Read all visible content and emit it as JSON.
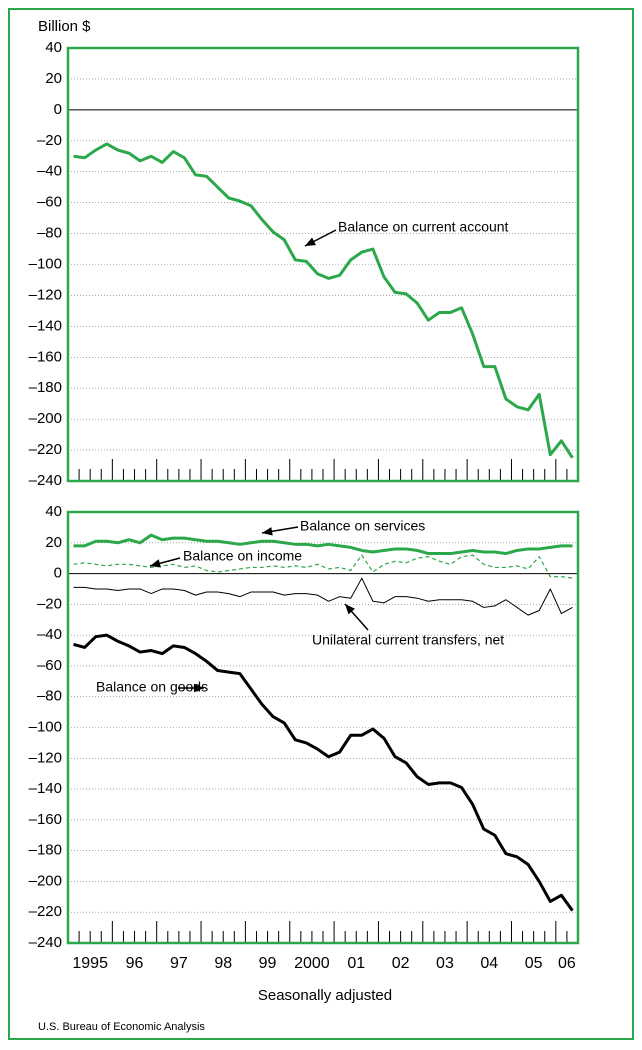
{
  "y_axis_label": "Billion $",
  "x_axis_label": "Seasonally adjusted",
  "source": "U.S. Bureau of Economic Analysis",
  "chart_data": [
    {
      "type": "line",
      "ylim": [
        -240,
        40
      ],
      "yticks": [
        40,
        20,
        0,
        {
          "value": -20,
          "label": "–20"
        },
        {
          "value": -40,
          "label": "–40"
        },
        {
          "value": -60,
          "label": "–60"
        },
        {
          "value": -80,
          "label": "–80"
        },
        {
          "value": -100,
          "label": "–100"
        },
        {
          "value": -120,
          "label": "–120"
        },
        {
          "value": -140,
          "label": "–140"
        },
        {
          "value": -160,
          "label": "–160"
        },
        {
          "value": -180,
          "label": "–180"
        },
        {
          "value": -200,
          "label": "–200"
        },
        {
          "value": -220,
          "label": "–220"
        },
        {
          "value": -240,
          "label": "–240"
        }
      ],
      "grid": true,
      "series": [
        {
          "name": "Balance on current account",
          "color": "#2aa84a",
          "values": [
            -30,
            -31,
            -26,
            -22,
            -26,
            -28,
            -33,
            -30,
            -34,
            -27,
            -31,
            -42,
            -43,
            -50,
            -57,
            -59,
            -62,
            -71,
            -79,
            -84,
            -97,
            -98,
            -106,
            -109,
            -107,
            -97,
            -92,
            -90,
            -108,
            -118,
            -119,
            -125,
            -136,
            -131,
            -131,
            -128,
            -145,
            -166,
            -166,
            -187,
            -192,
            -194,
            -184,
            -223,
            -214,
            -225
          ]
        }
      ]
    },
    {
      "type": "line",
      "ylim": [
        -240,
        40
      ],
      "yticks": [
        40,
        20,
        0,
        {
          "value": -20,
          "label": "–20"
        },
        {
          "value": -40,
          "label": "–40"
        },
        {
          "value": -60,
          "label": "–60"
        },
        {
          "value": -80,
          "label": "–80"
        },
        {
          "value": -100,
          "label": "–100"
        },
        {
          "value": -120,
          "label": "–120"
        },
        {
          "value": -140,
          "label": "–140"
        },
        {
          "value": -160,
          "label": "–160"
        },
        {
          "value": -180,
          "label": "–180"
        },
        {
          "value": -200,
          "label": "–200"
        },
        {
          "value": -220,
          "label": "–220"
        },
        {
          "value": -240,
          "label": "–240"
        }
      ],
      "grid": true,
      "categories": [
        "1995",
        null,
        null,
        null,
        "96",
        null,
        null,
        null,
        "97",
        null,
        null,
        null,
        "98",
        null,
        null,
        null,
        "99",
        null,
        null,
        null,
        "2000",
        null,
        null,
        null,
        "01",
        null,
        null,
        null,
        "02",
        null,
        null,
        null,
        "03",
        null,
        null,
        null,
        "04",
        null,
        null,
        null,
        "05",
        null,
        null,
        null,
        "06",
        null
      ],
      "series": [
        {
          "name": "Balance on services",
          "color": "#2aa84a",
          "values": [
            18,
            18,
            21,
            21,
            20,
            22,
            20,
            25,
            22,
            23,
            23,
            22,
            21,
            21,
            20,
            19,
            20,
            21,
            21,
            20,
            19,
            19,
            18,
            19,
            18,
            17,
            15,
            14,
            15,
            16,
            16,
            15,
            13,
            13,
            13,
            14,
            15,
            14,
            14,
            13,
            15,
            16,
            16,
            17,
            18,
            18
          ]
        },
        {
          "name": "Balance on income",
          "color": "#2aa84a",
          "dashed": true,
          "values": [
            6,
            7,
            6,
            5,
            6,
            6,
            5,
            4,
            5,
            6,
            4,
            5,
            2,
            1,
            2,
            3,
            4,
            4,
            5,
            4,
            5,
            4,
            6,
            3,
            4,
            2,
            12,
            1,
            6,
            8,
            7,
            10,
            11,
            8,
            6,
            11,
            12,
            6,
            4,
            4,
            5,
            3,
            11,
            -2,
            -2,
            -3
          ]
        },
        {
          "name": "Unilateral current transfers, net",
          "color": "#000000",
          "values": [
            -9,
            -9,
            -10,
            -10,
            -11,
            -10,
            -10,
            -13,
            -10,
            -10,
            -11,
            -14,
            -12,
            -12,
            -13,
            -15,
            -12,
            -12,
            -12,
            -14,
            -13,
            -13,
            -14,
            -18,
            -15,
            -16,
            -3,
            -18,
            -19,
            -15,
            -15,
            -16,
            -18,
            -17,
            -17,
            -17,
            -18,
            -22,
            -21,
            -17,
            -22,
            -27,
            -24,
            -10,
            -26,
            -22
          ]
        },
        {
          "name": "Balance on goods",
          "color": "#000000",
          "values": [
            -46,
            -48,
            -41,
            -40,
            -44,
            -47,
            -51,
            -50,
            -52,
            -47,
            -48,
            -52,
            -57,
            -63,
            -64,
            -65,
            -75,
            -85,
            -93,
            -97,
            -108,
            -110,
            -114,
            -119,
            -116,
            -105,
            -105,
            -101,
            -107,
            -119,
            -123,
            -132,
            -137,
            -136,
            -136,
            -139,
            -150,
            -166,
            -170,
            -182,
            -184,
            -189,
            -200,
            -213,
            -209,
            -219
          ]
        }
      ]
    }
  ]
}
